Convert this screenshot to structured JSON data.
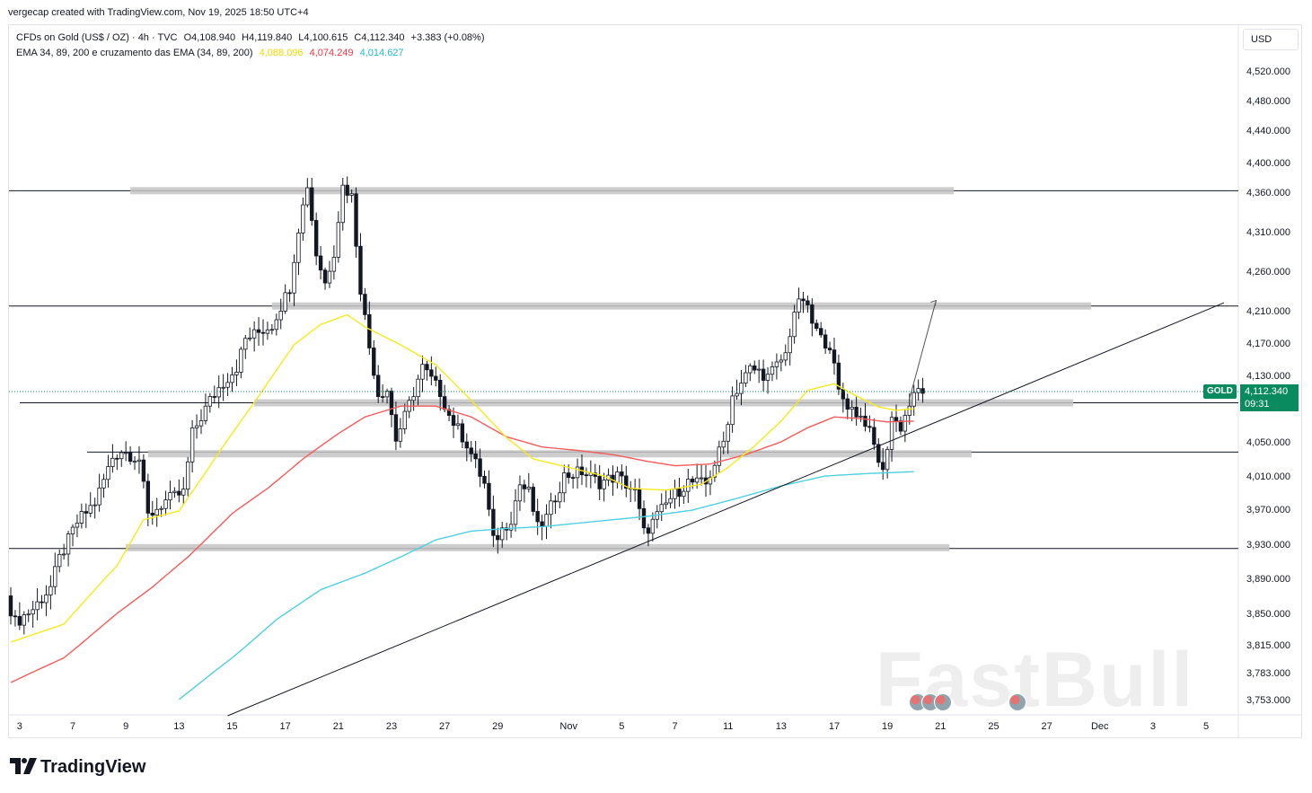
{
  "header": {
    "caption": "vergecap created with TradingView.com, Nov 19, 2025 18:50 UTC+4"
  },
  "legend": {
    "symbol_line": "CFDs on Gold (US$ / OZ) · 4h · TVC",
    "open": "O4,108.940",
    "high": "H4,119.840",
    "low": "L4,100.615",
    "close": "C4,112.340",
    "change": "+3.383 (+0.08%)",
    "ema_label": "EMA 34, 89, 200 e cruzamento das EMA (34, 89, 200)",
    "ema34_value": "4,088.096",
    "ema89_value": "4,074.249",
    "ema200_value": "4,014.627"
  },
  "toolbar": {
    "currency": "USD"
  },
  "price_tag": {
    "symbol": "GOLD",
    "price": "4,112.340",
    "countdown": "09:31"
  },
  "watermark": "FastBull",
  "brand": {
    "name": "TradingView"
  },
  "colors": {
    "up": "#089981",
    "down": "#f23645",
    "ema34": "#f7ea1c",
    "ema89": "#f45b5b",
    "ema200": "#4dd0e1",
    "zone": "#c4c4c4"
  },
  "chart_data": {
    "type": "candlestick",
    "title": "CFDs on Gold (US$ / OZ) · 4h · TVC",
    "y_ticks": [
      {
        "label": "4,520.000",
        "value": 4520
      },
      {
        "label": "4,480.000",
        "value": 4480
      },
      {
        "label": "4,440.000",
        "value": 4440
      },
      {
        "label": "4,400.000",
        "value": 4400
      },
      {
        "label": "4,360.000",
        "value": 4360
      },
      {
        "label": "4,310.000",
        "value": 4310
      },
      {
        "label": "4,260.000",
        "value": 4260
      },
      {
        "label": "4,210.000",
        "value": 4210
      },
      {
        "label": "4,170.000",
        "value": 4170
      },
      {
        "label": "4,130.000",
        "value": 4130
      },
      {
        "label": "4,050.000",
        "value": 4050
      },
      {
        "label": "4,010.000",
        "value": 4010
      },
      {
        "label": "3,970.000",
        "value": 3970
      },
      {
        "label": "3,930.000",
        "value": 3930
      },
      {
        "label": "3,890.000",
        "value": 3890
      },
      {
        "label": "3,850.000",
        "value": 3850
      },
      {
        "label": "3,815.000",
        "value": 3815
      },
      {
        "label": "3,783.000",
        "value": 3783
      },
      {
        "label": "3,753.000",
        "value": 3753
      }
    ],
    "x_ticks": [
      "3",
      "7",
      "9",
      "13",
      "15",
      "17",
      "21",
      "23",
      "27",
      "29",
      "Nov",
      "5",
      "7",
      "11",
      "13",
      "17",
      "19",
      "21",
      "25",
      "27",
      "Dec",
      "3",
      "5"
    ],
    "x_tick_bar_index": [
      2,
      14,
      26,
      38,
      50,
      62,
      74,
      86,
      98,
      110,
      126,
      138,
      150,
      162,
      174,
      186,
      198,
      210,
      222,
      234,
      246,
      258,
      270
    ],
    "horizontal_levels": [
      4362,
      4216,
      4097,
      4038,
      3925
    ],
    "zones": [
      {
        "from_bar": 27,
        "to_bar": 213,
        "price": 4362
      },
      {
        "from_bar": 59,
        "to_bar": 244,
        "price": 4216
      },
      {
        "from_bar": 55,
        "to_bar": 240,
        "price": 4097
      },
      {
        "from_bar": 31,
        "to_bar": 217,
        "price": 4036
      },
      {
        "from_bar": 26,
        "to_bar": 212,
        "price": 3926
      }
    ],
    "trendline": {
      "from_bar": 49,
      "from_price": 3735,
      "to_bar": 274,
      "to_price": 4220
    },
    "projection": [
      [
        203,
        4102
      ],
      [
        209,
        4223
      ]
    ],
    "ema34_anchors": [
      [
        0,
        3818
      ],
      [
        12,
        3838
      ],
      [
        24,
        3905
      ],
      [
        30,
        3958
      ],
      [
        38,
        3968
      ],
      [
        48,
        4045
      ],
      [
        56,
        4105
      ],
      [
        64,
        4168
      ],
      [
        70,
        4193
      ],
      [
        76,
        4205
      ],
      [
        80,
        4190
      ],
      [
        88,
        4168
      ],
      [
        96,
        4143
      ],
      [
        104,
        4100
      ],
      [
        112,
        4055
      ],
      [
        118,
        4030
      ],
      [
        126,
        4020
      ],
      [
        134,
        4010
      ],
      [
        140,
        3995
      ],
      [
        148,
        3993
      ],
      [
        156,
        4000
      ],
      [
        162,
        4020
      ],
      [
        168,
        4045
      ],
      [
        174,
        4075
      ],
      [
        180,
        4112
      ],
      [
        186,
        4120
      ],
      [
        190,
        4108
      ],
      [
        196,
        4092
      ],
      [
        200,
        4088
      ],
      [
        204,
        4090
      ]
    ],
    "ema89_anchors": [
      [
        0,
        3772
      ],
      [
        12,
        3800
      ],
      [
        24,
        3850
      ],
      [
        32,
        3880
      ],
      [
        40,
        3915
      ],
      [
        50,
        3965
      ],
      [
        58,
        3995
      ],
      [
        66,
        4030
      ],
      [
        74,
        4060
      ],
      [
        80,
        4080
      ],
      [
        88,
        4093
      ],
      [
        96,
        4093
      ],
      [
        104,
        4080
      ],
      [
        112,
        4056
      ],
      [
        120,
        4044
      ],
      [
        128,
        4040
      ],
      [
        136,
        4035
      ],
      [
        144,
        4027
      ],
      [
        150,
        4022
      ],
      [
        158,
        4024
      ],
      [
        166,
        4035
      ],
      [
        174,
        4050
      ],
      [
        180,
        4067
      ],
      [
        186,
        4080
      ],
      [
        192,
        4078
      ],
      [
        198,
        4074
      ],
      [
        204,
        4075
      ]
    ],
    "ema200_anchors": [
      [
        38,
        3753
      ],
      [
        50,
        3800
      ],
      [
        60,
        3843
      ],
      [
        70,
        3877
      ],
      [
        80,
        3896
      ],
      [
        88,
        3915
      ],
      [
        96,
        3935
      ],
      [
        104,
        3945
      ],
      [
        112,
        3948
      ],
      [
        120,
        3950
      ],
      [
        128,
        3954
      ],
      [
        136,
        3958
      ],
      [
        144,
        3962
      ],
      [
        154,
        3969
      ],
      [
        164,
        3983
      ],
      [
        174,
        3998
      ],
      [
        184,
        4010
      ],
      [
        194,
        4013
      ],
      [
        204,
        4015
      ]
    ],
    "price_anchors": [
      [
        0,
        3870
      ],
      [
        2,
        3840
      ],
      [
        6,
        3855
      ],
      [
        10,
        3880
      ],
      [
        12,
        3913
      ],
      [
        16,
        3955
      ],
      [
        20,
        3978
      ],
      [
        24,
        4032
      ],
      [
        26,
        4040
      ],
      [
        30,
        4030
      ],
      [
        32,
        3962
      ],
      [
        36,
        3980
      ],
      [
        40,
        3990
      ],
      [
        42,
        4060
      ],
      [
        46,
        4100
      ],
      [
        48,
        4115
      ],
      [
        52,
        4140
      ],
      [
        54,
        4175
      ],
      [
        60,
        4192
      ],
      [
        64,
        4240
      ],
      [
        66,
        4315
      ],
      [
        68,
        4370
      ],
      [
        70,
        4282
      ],
      [
        72,
        4245
      ],
      [
        74,
        4285
      ],
      [
        76,
        4368
      ],
      [
        78,
        4355
      ],
      [
        80,
        4238
      ],
      [
        82,
        4165
      ],
      [
        84,
        4108
      ],
      [
        86,
        4113
      ],
      [
        88,
        4053
      ],
      [
        90,
        4080
      ],
      [
        94,
        4140
      ],
      [
        98,
        4110
      ],
      [
        100,
        4082
      ],
      [
        104,
        4048
      ],
      [
        108,
        4000
      ],
      [
        110,
        3933
      ],
      [
        114,
        3960
      ],
      [
        116,
        4000
      ],
      [
        118,
        3990
      ],
      [
        120,
        3948
      ],
      [
        122,
        3960
      ],
      [
        126,
        4010
      ],
      [
        130,
        4015
      ],
      [
        134,
        4002
      ],
      [
        138,
        4010
      ],
      [
        142,
        3990
      ],
      [
        144,
        3943
      ],
      [
        146,
        3955
      ],
      [
        150,
        3983
      ],
      [
        154,
        4003
      ],
      [
        158,
        4000
      ],
      [
        162,
        4050
      ],
      [
        164,
        4105
      ],
      [
        168,
        4138
      ],
      [
        170,
        4135
      ],
      [
        172,
        4128
      ],
      [
        176,
        4156
      ],
      [
        178,
        4210
      ],
      [
        180,
        4225
      ],
      [
        182,
        4195
      ],
      [
        184,
        4175
      ],
      [
        186,
        4168
      ],
      [
        188,
        4110
      ],
      [
        190,
        4095
      ],
      [
        194,
        4075
      ],
      [
        196,
        4045
      ],
      [
        198,
        4013
      ],
      [
        200,
        4080
      ],
      [
        202,
        4068
      ],
      [
        204,
        4095
      ],
      [
        206,
        4112
      ]
    ]
  }
}
